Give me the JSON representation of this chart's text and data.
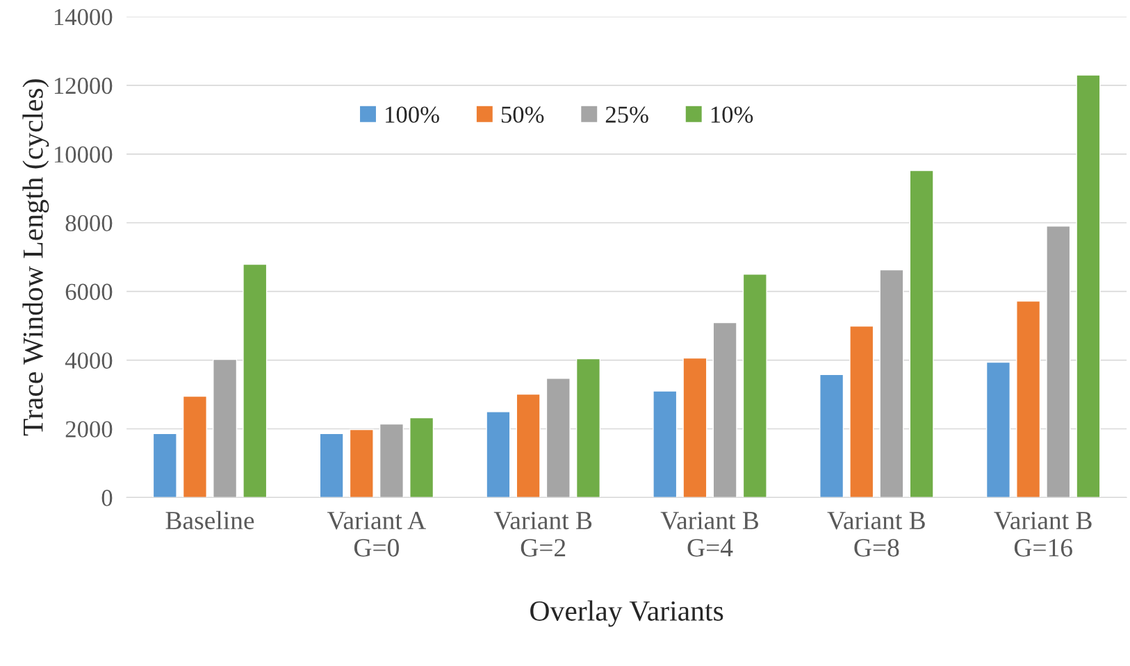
{
  "chart_data": {
    "type": "bar",
    "xlabel": "Overlay Variants",
    "ylabel": "Trace Window Length (cycles)",
    "categories": [
      "Baseline",
      "Variant A\nG=0",
      "Variant B\nG=2",
      "Variant B\nG=4",
      "Variant B\nG=8",
      "Variant B\nG=16"
    ],
    "series": [
      {
        "name": "100%",
        "color": "#5b9bd5",
        "values": [
          1860,
          1860,
          2500,
          3100,
          3580,
          3940
        ]
      },
      {
        "name": "50%",
        "color": "#ed7d31",
        "values": [
          2950,
          1980,
          3010,
          4060,
          4990,
          5720
        ]
      },
      {
        "name": "25%",
        "color": "#a5a5a5",
        "values": [
          4020,
          2140,
          3470,
          5090,
          6630,
          7900
        ]
      },
      {
        "name": "10%",
        "color": "#70ad47",
        "values": [
          6790,
          2320,
          4040,
          6500,
          9520,
          12300
        ]
      }
    ],
    "ylim": [
      0,
      14000
    ],
    "yticks": [
      0,
      2000,
      4000,
      6000,
      8000,
      10000,
      12000,
      14000
    ],
    "grid": "y",
    "legend": "top"
  }
}
